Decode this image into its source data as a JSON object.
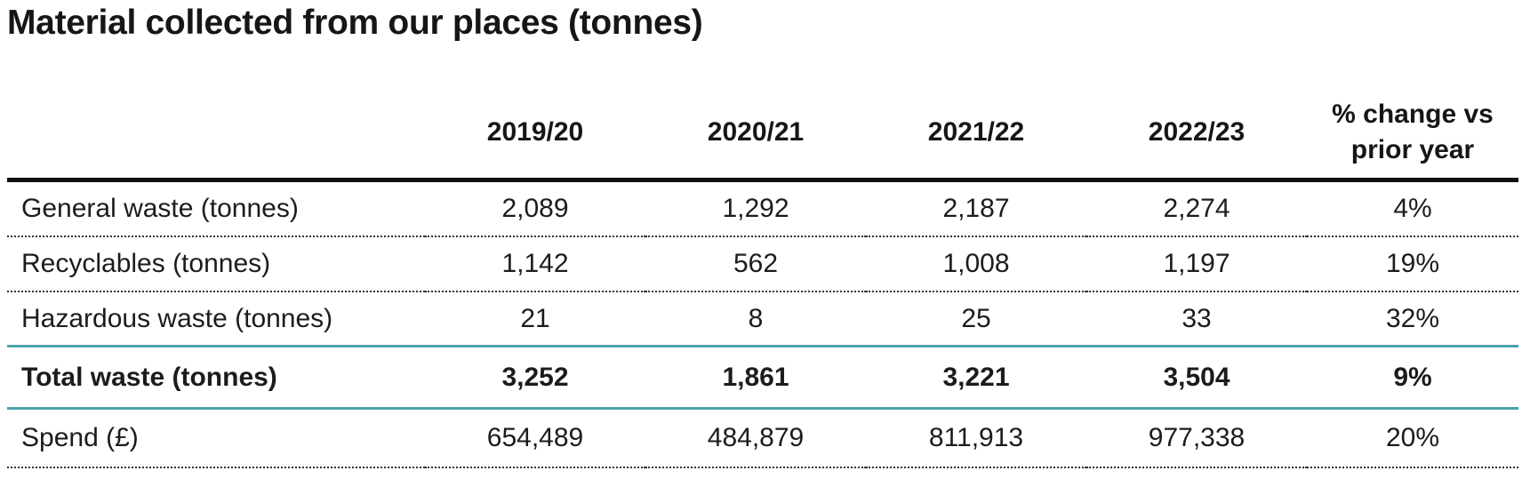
{
  "title": "Material collected from our places (tonnes)",
  "table": {
    "headers": [
      "",
      "2019/20",
      "2020/21",
      "2021/22",
      "2022/23",
      "% change vs prior year"
    ],
    "rows": [
      {
        "label": "General waste (tonnes)",
        "values": [
          "2,089",
          "1,292",
          "2,187",
          "2,274",
          "4%"
        ]
      },
      {
        "label": "Recyclables (tonnes)",
        "values": [
          "1,142",
          "562",
          "1,008",
          "1,197",
          "19%"
        ]
      },
      {
        "label": "Hazardous waste (tonnes)",
        "values": [
          "21",
          "8",
          "25",
          "33",
          "32%"
        ]
      },
      {
        "label": "Total waste (tonnes)",
        "values": [
          "3,252",
          "1,861",
          "3,221",
          "3,504",
          "9%"
        ]
      },
      {
        "label": "Spend (£)",
        "values": [
          "654,489",
          "484,879",
          "811,913",
          "977,338",
          "20%"
        ]
      }
    ]
  },
  "colors": {
    "accent_rule": "#4aa3ad",
    "header_rule": "#111111",
    "text": "#1a1a1a"
  }
}
